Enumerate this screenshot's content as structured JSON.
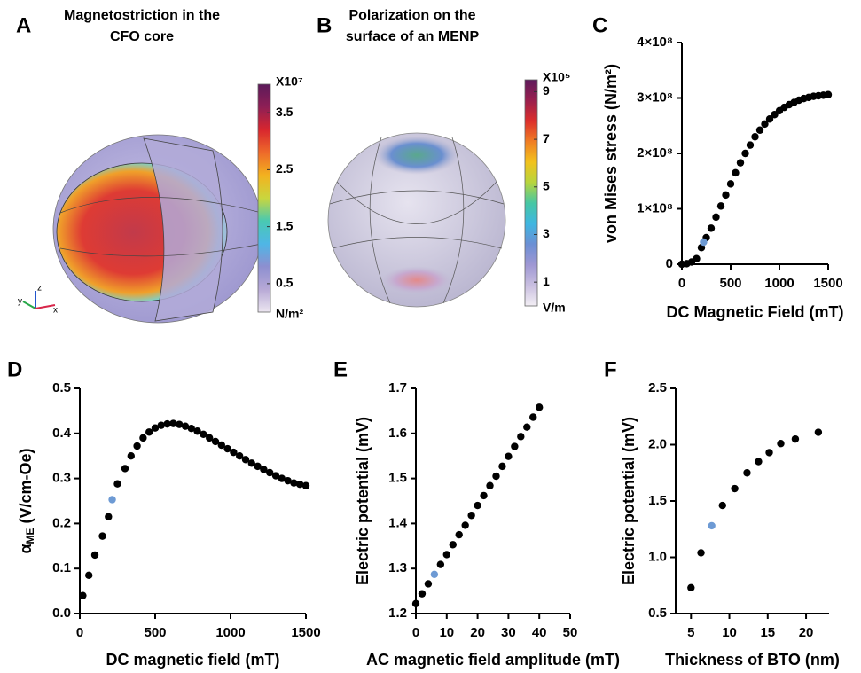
{
  "chart_data": [
    {
      "type": "colorbar",
      "panel": "A",
      "title": [
        "Magnetostriction in the",
        "CFO core"
      ],
      "multiplier": "X10⁷",
      "unit": "N/m²",
      "ylim": [
        0,
        4
      ],
      "yticks": [
        0.5,
        1.5,
        2.5,
        3.5
      ],
      "colors": [
        "#ece6f0",
        "#b7a9d6",
        "#8d8fd0",
        "#4fb6e6",
        "#49c9b2",
        "#c9d63e",
        "#f3b21f",
        "#ee6a2a",
        "#d8262e",
        "#8e1f55",
        "#5b1a5a"
      ],
      "axes_labels": [
        "x",
        "y",
        "z"
      ]
    },
    {
      "type": "colorbar",
      "panel": "B",
      "title": [
        "Polarization on the",
        "surface of an MENP"
      ],
      "multiplier": "X10⁵",
      "unit": "V/m",
      "ylim": [
        0,
        9.5
      ],
      "yticks": [
        1,
        3,
        5,
        7,
        9
      ],
      "colors": [
        "#f2eef4",
        "#c9bfe0",
        "#9e97d3",
        "#6c8fd4",
        "#3fb6e1",
        "#46c7a4",
        "#b7d53d",
        "#f2c21d",
        "#f07d24",
        "#dc2e2c",
        "#9a1f4e",
        "#5d1a5c"
      ]
    },
    {
      "type": "scatter",
      "panel": "C",
      "xlabel": "DC Magnetic Field (mT)",
      "ylabel": "von Mises stress (N/m²)",
      "xlim": [
        0,
        1500
      ],
      "ylim": [
        0,
        400000000
      ],
      "xticks": [
        0,
        500,
        1000,
        1500
      ],
      "yticks": [
        0,
        {
          "value": 100000000,
          "label": "1×10⁸"
        },
        {
          "value": 200000000,
          "label": "2×10⁸"
        },
        {
          "value": 300000000,
          "label": "3×10⁸"
        },
        {
          "value": 400000000,
          "label": "4×10⁸"
        }
      ],
      "series": [
        {
          "color": "#000000",
          "x": [
            0,
            50,
            100,
            150,
            200,
            250,
            300,
            350,
            400,
            450,
            500,
            550,
            600,
            650,
            700,
            750,
            800,
            850,
            900,
            950,
            1000,
            1050,
            1100,
            1150,
            1200,
            1250,
            1300,
            1350,
            1400,
            1450,
            1500
          ],
          "values": [
            0,
            1000000,
            4000000,
            10000000,
            30000000,
            48000000,
            65000000,
            85000000,
            105000000,
            125000000,
            145000000,
            165000000,
            183000000,
            200000000,
            215000000,
            230000000,
            242000000,
            253000000,
            262000000,
            270000000,
            277000000,
            283000000,
            288000000,
            292000000,
            296000000,
            299000000,
            301000000,
            303000000,
            304000000,
            305000000,
            306000000
          ]
        },
        {
          "color": "#6d9ad4",
          "x": [
            222
          ],
          "values": [
            40000000
          ]
        }
      ]
    },
    {
      "type": "scatter",
      "panel": "D",
      "xlabel": "DC magnetic field (mT)",
      "ylabel": {
        "symbol": "α",
        "subscript": "ME",
        "text": " (V/cm-Oe)"
      },
      "xlim": [
        0,
        1500
      ],
      "ylim": [
        0,
        0.5
      ],
      "xticks": [
        0,
        500,
        1000,
        1500
      ],
      "yticks": [
        {
          "value": 0,
          "label": "0.0"
        },
        0.1,
        0.2,
        0.3,
        0.4,
        0.5
      ],
      "series": [
        {
          "color": "#000000",
          "x": [
            20,
            60,
            100,
            150,
            190,
            250,
            300,
            340,
            380,
            420,
            460,
            500,
            540,
            580,
            620,
            660,
            700,
            740,
            780,
            820,
            860,
            900,
            940,
            980,
            1020,
            1060,
            1100,
            1140,
            1180,
            1220,
            1260,
            1300,
            1340,
            1380,
            1420,
            1460,
            1500
          ],
          "values": [
            0.04,
            0.085,
            0.13,
            0.172,
            0.215,
            0.288,
            0.322,
            0.35,
            0.372,
            0.39,
            0.403,
            0.412,
            0.418,
            0.421,
            0.422,
            0.42,
            0.416,
            0.411,
            0.405,
            0.398,
            0.39,
            0.382,
            0.374,
            0.366,
            0.358,
            0.35,
            0.342,
            0.334,
            0.327,
            0.32,
            0.313,
            0.306,
            0.3,
            0.295,
            0.29,
            0.287,
            0.284
          ]
        },
        {
          "color": "#6d9ad4",
          "x": [
            215
          ],
          "values": [
            0.253
          ]
        }
      ]
    },
    {
      "type": "scatter",
      "panel": "E",
      "xlabel": "AC magnetic field amplitude (mT)",
      "ylabel": "Electric potential (mV)",
      "xlim": [
        0,
        50
      ],
      "ylim": [
        1.2,
        1.7
      ],
      "xticks": [
        0,
        10,
        20,
        30,
        40,
        50
      ],
      "yticks": [
        1.2,
        1.3,
        1.4,
        1.5,
        1.6,
        1.7
      ],
      "series": [
        {
          "color": "#000000",
          "x": [
            0,
            2,
            4,
            8,
            10,
            12,
            14,
            16,
            18,
            20,
            22,
            24,
            26,
            28,
            30,
            32,
            34,
            36,
            38,
            40
          ],
          "values": [
            1.222,
            1.244,
            1.266,
            1.309,
            1.331,
            1.353,
            1.375,
            1.396,
            1.418,
            1.44,
            1.462,
            1.484,
            1.505,
            1.527,
            1.549,
            1.571,
            1.593,
            1.614,
            1.636,
            1.658
          ]
        },
        {
          "color": "#6d9ad4",
          "x": [
            6
          ],
          "values": [
            1.287
          ]
        }
      ]
    },
    {
      "type": "scatter",
      "panel": "F",
      "xlabel": "Thickness of BTO (nm)",
      "ylabel": "Electric potential (mV)",
      "xlim": [
        3,
        23
      ],
      "ylim": [
        0.5,
        2.5
      ],
      "xticks": [
        5,
        10,
        15,
        20
      ],
      "yticks": [
        0.5,
        {
          "value": 1,
          "label": "1.0"
        },
        1.5,
        {
          "value": 2,
          "label": "2.0"
        },
        2.5
      ],
      "series": [
        {
          "color": "#000000",
          "x": [
            5,
            6.3,
            9.1,
            10.7,
            12.3,
            13.8,
            15.2,
            16.7,
            18.6,
            21.6
          ],
          "values": [
            0.73,
            1.04,
            1.46,
            1.61,
            1.75,
            1.85,
            1.93,
            2.01,
            2.05,
            2.11
          ]
        },
        {
          "color": "#6d9ad4",
          "x": [
            7.7
          ],
          "values": [
            1.28
          ]
        }
      ]
    }
  ]
}
